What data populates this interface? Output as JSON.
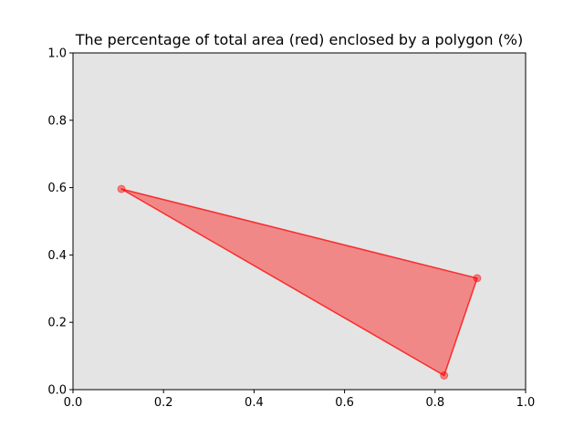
{
  "chart_data": {
    "type": "area",
    "title": "The percentage of total area (red) enclosed by a polygon (%)",
    "xlabel": "",
    "ylabel": "",
    "xlim": [
      0.0,
      1.0
    ],
    "ylim": [
      0.0,
      1.0
    ],
    "x_ticks": [
      "0.0",
      "0.2",
      "0.4",
      "0.6",
      "0.8",
      "1.0"
    ],
    "y_ticks": [
      "0.0",
      "0.2",
      "0.4",
      "0.6",
      "0.8",
      "1.0"
    ],
    "grid": false,
    "background_color": "#e4e4e4",
    "polygon": {
      "color": "#ff0000",
      "fill_color": "#f08888",
      "vertices": [
        {
          "x": 0.107,
          "y": 0.596
        },
        {
          "x": 0.893,
          "y": 0.331
        },
        {
          "x": 0.82,
          "y": 0.042
        }
      ]
    }
  }
}
